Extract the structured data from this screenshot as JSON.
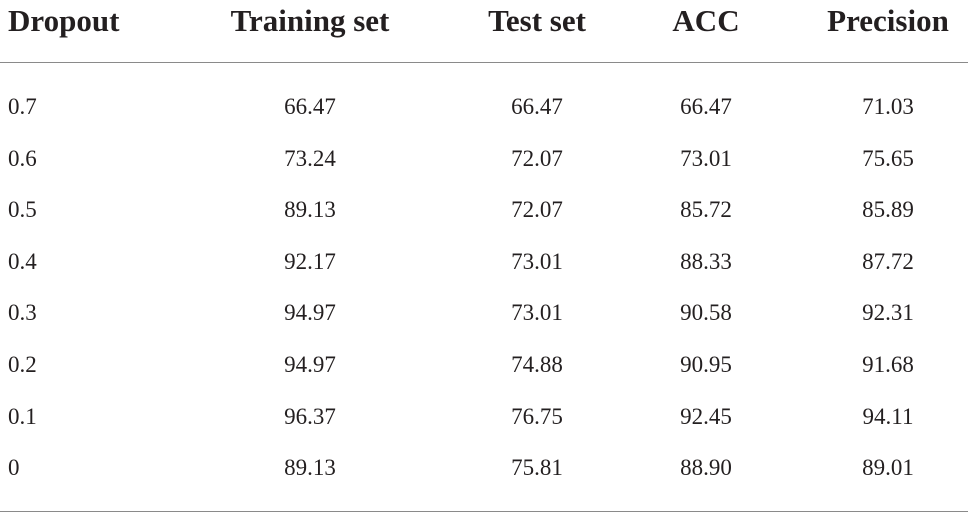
{
  "table": {
    "header": [
      "Dropout",
      "Training set",
      "Test set",
      "ACC",
      "Precision"
    ],
    "rows": [
      [
        "0.7",
        "66.47",
        "66.47",
        "66.47",
        "71.03"
      ],
      [
        "0.6",
        "73.24",
        "72.07",
        "73.01",
        "75.65"
      ],
      [
        "0.5",
        "89.13",
        "72.07",
        "85.72",
        "85.89"
      ],
      [
        "0.4",
        "92.17",
        "73.01",
        "88.33",
        "87.72"
      ],
      [
        "0.3",
        "94.97",
        "73.01",
        "90.58",
        "92.31"
      ],
      [
        "0.2",
        "94.97",
        "74.88",
        "90.95",
        "91.68"
      ],
      [
        "0.1",
        "96.37",
        "76.75",
        "92.45",
        "94.11"
      ],
      [
        "0",
        "89.13",
        "75.81",
        "88.90",
        "89.01"
      ]
    ]
  }
}
